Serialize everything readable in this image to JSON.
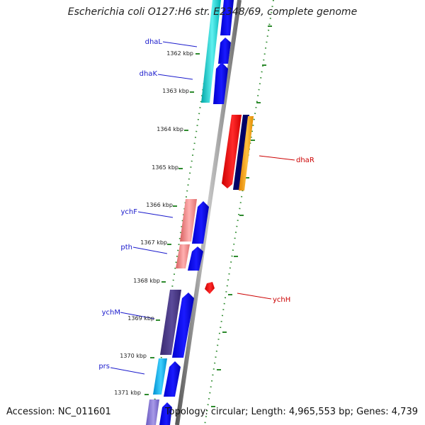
{
  "title": "Escherichia coli O127:H6 str. E2348/69, complete genome",
  "footer": {
    "accession": "Accession: NC_011601",
    "summary": "Topology: circular; Length: 4,965,553 bp; Genes: 4,739"
  },
  "colors": {
    "backbone": "#888888",
    "ruler_dots": "#2e8b2e",
    "label_blue": "#1a1acc",
    "label_red": "#cc0000",
    "cds": "#0000ee",
    "cyan": "#00c8c8",
    "salmon": "#f08080",
    "purple": "#4a3a8a",
    "red": "#ee0000",
    "navy": "#000066",
    "orange": "#ff9900"
  },
  "ticks": [
    "1362 kbp",
    "1363 kbp",
    "1364 kbp",
    "1365 kbp",
    "1366 kbp",
    "1367 kbp",
    "1368 kbp",
    "1369 kbp",
    "1370 kbp",
    "1371 kbp"
  ],
  "genes": [
    {
      "name": "dhaL",
      "strand": "left"
    },
    {
      "name": "dhaK",
      "strand": "left"
    },
    {
      "name": "dhaR",
      "strand": "right"
    },
    {
      "name": "ychF",
      "strand": "left"
    },
    {
      "name": "pth",
      "strand": "left"
    },
    {
      "name": "ychH",
      "strand": "right"
    },
    {
      "name": "ychM",
      "strand": "left"
    },
    {
      "name": "prs",
      "strand": "left"
    }
  ]
}
